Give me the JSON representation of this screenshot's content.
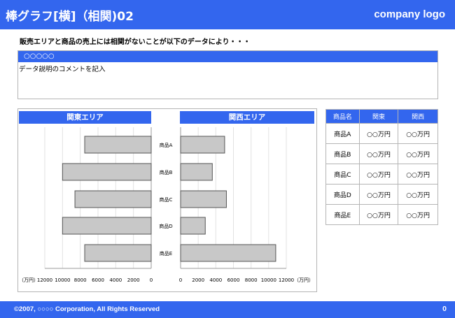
{
  "header": {
    "title": "棒グラフ[横]（相関)02",
    "logo_text": "company logo"
  },
  "headline": "販売エリアと商品の売上には相関がないことが以下のデータにより・・・",
  "comment": {
    "head": "○○○○○",
    "body": "データ説明のコメントを記入"
  },
  "chart_data": [
    {
      "type": "bar",
      "orientation": "horizontal",
      "x_direction": "reversed",
      "title": "関東エリア",
      "categories": [
        "商品A",
        "商品B",
        "商品C",
        "商品D",
        "商品E"
      ],
      "values": [
        7500,
        10000,
        8600,
        10000,
        7500
      ],
      "xlim": [
        0,
        12000
      ],
      "ticks": [
        0,
        2000,
        4000,
        6000,
        8000,
        10000,
        12000
      ],
      "unit_label": "（万円）",
      "grid": "vertical",
      "bar_color": "#c8c8c8"
    },
    {
      "type": "bar",
      "orientation": "horizontal",
      "title": "関西エリア",
      "categories": [
        "商品A",
        "商品B",
        "商品C",
        "商品D",
        "商品E"
      ],
      "values": [
        5000,
        3600,
        5200,
        2800,
        10800
      ],
      "xlim": [
        0,
        12000
      ],
      "ticks": [
        0,
        2000,
        4000,
        6000,
        8000,
        10000,
        12000
      ],
      "unit_label": "（万円）",
      "grid": "vertical",
      "bar_color": "#c8c8c8"
    }
  ],
  "table": {
    "headers": [
      "商品名",
      "関東",
      "関西"
    ],
    "rows": [
      [
        "商品A",
        "○○万円",
        "○○万円"
      ],
      [
        "商品B",
        "○○万円",
        "○○万円"
      ],
      [
        "商品C",
        "○○万円",
        "○○万円"
      ],
      [
        "商品D",
        "○○万円",
        "○○万円"
      ],
      [
        "商品E",
        "○○万円",
        "○○万円"
      ]
    ]
  },
  "footer": {
    "copyright": "©2007, ○○○○ Corporation, All Rights Reserved",
    "page_number": "0"
  },
  "colors": {
    "accent": "#3366ee",
    "bar": "#c8c8c8",
    "border": "#b5b5b5"
  }
}
